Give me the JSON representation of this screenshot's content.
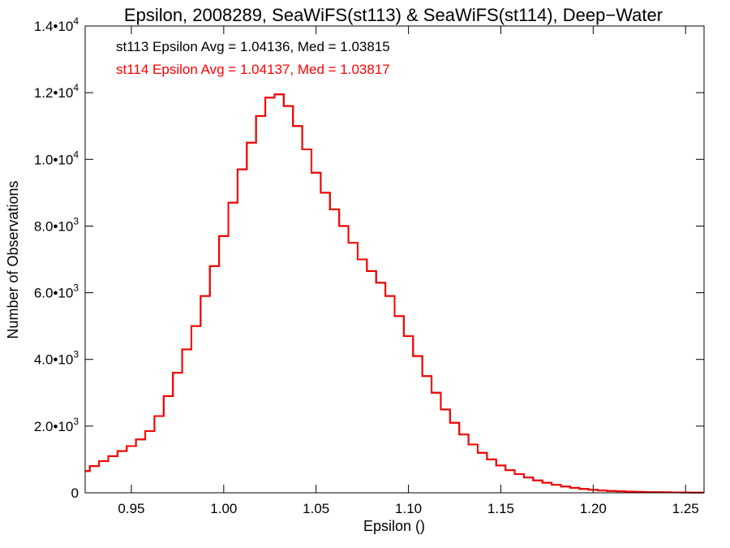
{
  "chart_data": {
    "type": "line",
    "style": "histogram-step",
    "title": "Epsilon, 2008289, SeaWiFS(st113) & SeaWiFS(st114), Deep−Water",
    "xlabel": "Epsilon ()",
    "ylabel": "Number of Observations",
    "xlim": [
      0.925,
      1.26
    ],
    "ylim": [
      0,
      14000
    ],
    "grid": false,
    "x_ticks": [
      {
        "value": 0.95,
        "label": "0.95"
      },
      {
        "value": 1.0,
        "label": "1.00"
      },
      {
        "value": 1.05,
        "label": "1.05"
      },
      {
        "value": 1.1,
        "label": "1.10"
      },
      {
        "value": 1.15,
        "label": "1.15"
      },
      {
        "value": 1.2,
        "label": "1.20"
      },
      {
        "value": 1.25,
        "label": "1.25"
      }
    ],
    "y_ticks": [
      {
        "value": 0,
        "mant": "0",
        "exp": ""
      },
      {
        "value": 2000,
        "mant": "2.0•10",
        "exp": "3"
      },
      {
        "value": 4000,
        "mant": "4.0•10",
        "exp": "3"
      },
      {
        "value": 6000,
        "mant": "6.0•10",
        "exp": "3"
      },
      {
        "value": 8000,
        "mant": "8.0•10",
        "exp": "3"
      },
      {
        "value": 10000,
        "mant": "1.0•10",
        "exp": "4"
      },
      {
        "value": 12000,
        "mant": "1.2•10",
        "exp": "4"
      },
      {
        "value": 14000,
        "mant": "1.4•10",
        "exp": "4"
      }
    ],
    "annotations": [
      {
        "text": "st113 Epsilon Avg = 1.04136, Med = 1.03815",
        "color": "#000000"
      },
      {
        "text": "st114 Epsilon Avg = 1.04137, Med = 1.03817",
        "color": "#ff0000"
      }
    ],
    "x": [
      0.925,
      0.93,
      0.935,
      0.94,
      0.945,
      0.95,
      0.955,
      0.96,
      0.965,
      0.97,
      0.975,
      0.98,
      0.985,
      0.99,
      0.995,
      1.0,
      1.005,
      1.01,
      1.015,
      1.02,
      1.025,
      1.03,
      1.035,
      1.04,
      1.045,
      1.05,
      1.055,
      1.06,
      1.065,
      1.07,
      1.075,
      1.08,
      1.085,
      1.09,
      1.095,
      1.1,
      1.105,
      1.11,
      1.115,
      1.12,
      1.125,
      1.13,
      1.135,
      1.14,
      1.145,
      1.15,
      1.155,
      1.16,
      1.165,
      1.17,
      1.175,
      1.18,
      1.185,
      1.19,
      1.195,
      1.2,
      1.205,
      1.21,
      1.215,
      1.22,
      1.225,
      1.23,
      1.235,
      1.24,
      1.245,
      1.25,
      1.255,
      1.26
    ],
    "series": [
      {
        "name": "st113",
        "color": "#000000",
        "values": [
          650,
          800,
          950,
          1100,
          1250,
          1400,
          1600,
          1850,
          2300,
          2900,
          3600,
          4300,
          5000,
          5900,
          6800,
          7700,
          8700,
          9700,
          10500,
          11300,
          11850,
          11950,
          11600,
          11000,
          10300,
          9600,
          9000,
          8500,
          8000,
          7500,
          7000,
          6650,
          6300,
          5900,
          5300,
          4700,
          4100,
          3500,
          3000,
          2500,
          2100,
          1750,
          1450,
          1200,
          1000,
          820,
          680,
          560,
          460,
          370,
          300,
          240,
          190,
          150,
          115,
          90,
          70,
          55,
          45,
          35,
          28,
          22,
          18,
          14,
          11,
          9,
          7,
          6
        ]
      },
      {
        "name": "st114",
        "color": "#ff0000",
        "values": [
          650,
          800,
          950,
          1100,
          1250,
          1400,
          1600,
          1850,
          2300,
          2900,
          3600,
          4300,
          5000,
          5900,
          6800,
          7700,
          8700,
          9700,
          10500,
          11300,
          11850,
          11950,
          11600,
          11000,
          10300,
          9600,
          9000,
          8500,
          8000,
          7500,
          7000,
          6650,
          6300,
          5900,
          5300,
          4700,
          4100,
          3500,
          3000,
          2500,
          2100,
          1750,
          1450,
          1200,
          1000,
          820,
          680,
          560,
          460,
          370,
          300,
          240,
          190,
          150,
          115,
          90,
          70,
          55,
          45,
          35,
          28,
          22,
          18,
          14,
          11,
          9,
          7,
          6
        ]
      }
    ]
  }
}
